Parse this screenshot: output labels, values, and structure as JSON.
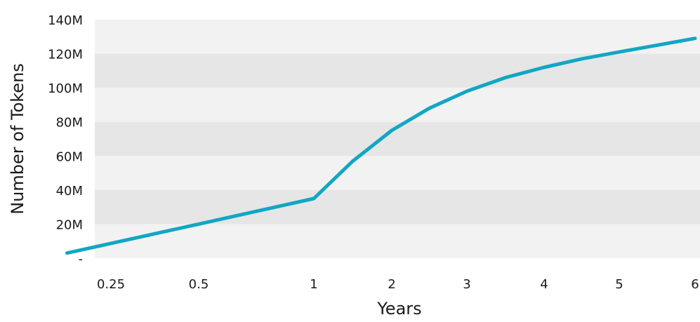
{
  "chart_data": {
    "type": "line",
    "title": "",
    "xlabel": "Years",
    "ylabel": "Number of Tokens",
    "x_tick_labels": [
      "0.25",
      "0.5",
      "1",
      "2",
      "3",
      "4",
      "5",
      "6"
    ],
    "y_tick_labels": [
      "-",
      "20M",
      "40M",
      "60M",
      "80M",
      "100M",
      "120M",
      "140M"
    ],
    "ylim": [
      0,
      140000000
    ],
    "grid": "alternating horizontal bands",
    "legend": "none",
    "series": [
      {
        "x": [
          0.125,
          0.5,
          1,
          1.5,
          2,
          2.5,
          3,
          3.5,
          4,
          4.5,
          5,
          5.5,
          6
        ],
        "values": [
          3000000,
          20000000,
          35000000,
          57000000,
          75000000,
          88000000,
          98000000,
          106000000,
          112000000,
          117000000,
          121000000,
          125000000,
          129000000
        ],
        "color": "#12a6c4"
      }
    ],
    "band_colors": [
      "#f2f2f2",
      "#e6e6e6"
    ]
  }
}
